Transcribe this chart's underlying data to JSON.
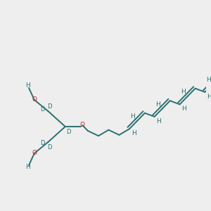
{
  "bg_color": "#eeeeee",
  "bond_color": "#2d7070",
  "o_color": "#cc2222",
  "lw": 1.4,
  "dbo": 0.007,
  "fs": 6.5,
  "figsize": [
    3.0,
    3.0
  ],
  "dpi": 100,
  "xlim": [
    0,
    300
  ],
  "ylim": [
    0,
    300
  ]
}
